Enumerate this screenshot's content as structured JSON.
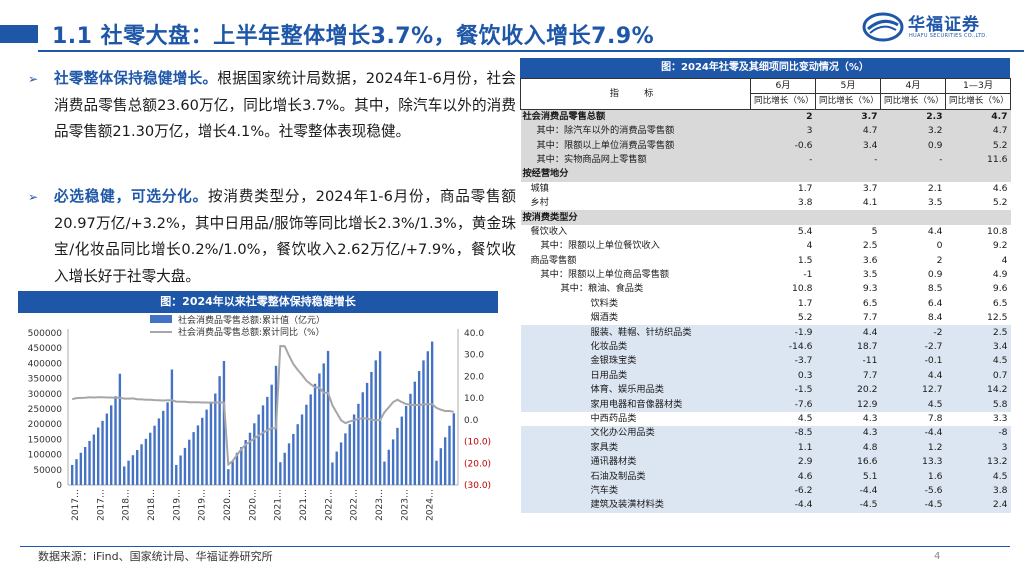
{
  "header": {
    "title": "1.1 社零大盘：上半年整体增长3.7%，餐饮收入增长7.9%",
    "logo_name": "华福证券",
    "logo_sub": "HUAFU SECURITIES CO.,LTD."
  },
  "bullets": [
    {
      "highlight": "社零整体保持稳健增长。",
      "body": "根据国家统计局数据，2024年1-6月份，社会消费品零售总额23.60万亿，同比增长3.7%。其中，除汽车以外的消费品零售额21.30万亿，增长4.1%。社零整体表现稳健。"
    },
    {
      "highlight": "必选稳健，可选分化。",
      "body": "按消费类型分，2024年1-6月份，商品零售额20.97万亿/+3.2%，其中日用品/服饰等同比增长2.3%/1.3%，黄金珠宝/化妆品同比增长0.2%/1.0%，餐饮收入2.62万亿/+7.9%，餐饮收入增长好于社零大盘。"
    }
  ],
  "chart_title": "图：2024年以来社零整体保持稳健增长",
  "chart_data": {
    "type": "bar+line",
    "legend": [
      "社会消费品零售总额:累计值（亿元）",
      "社会消费品零售总额:累计同比（%）"
    ],
    "legend_position": "top-left",
    "left_ticks": [
      "500000",
      "450000",
      "400000",
      "350000",
      "300000",
      "250000",
      "200000",
      "150000",
      "100000",
      "50000",
      "0"
    ],
    "right_ticks": [
      "40.0",
      "30.0",
      "20.0",
      "10.0",
      "0.0",
      "(10.0)",
      "(20.0)",
      "(30.0)"
    ],
    "x_ticks": [
      "2017…",
      "2017…",
      "2018…",
      "2018…",
      "2019…",
      "2019…",
      "2020…",
      "2020…",
      "2021…",
      "2021…",
      "2022…",
      "2022…",
      "2023…",
      "2023…",
      "2024…"
    ],
    "ylim_left": [
      0,
      500000
    ],
    "ylim_right": [
      -30,
      40
    ],
    "series": [
      {
        "name": "社会消费品零售总额:累计值（亿元）",
        "type": "bar",
        "values": [
          66000,
          85000,
          106000,
          125000,
          145000,
          166000,
          189000,
          211000,
          235000,
          262000,
          292000,
          366000,
          61000,
          80000,
          98000,
          115000,
          134000,
          152000,
          172000,
          195000,
          219000,
          244000,
          272000,
          380000,
          66000,
          97000,
          122000,
          149000,
          174000,
          196000,
          221000,
          248000,
          274000,
          301000,
          358000,
          408000,
          52000,
          78000,
          106000,
          125000,
          148000,
          172000,
          203000,
          232000,
          262000,
          290000,
          330000,
          392000,
          75000,
          106000,
          137000,
          168000,
          200000,
          232000,
          264000,
          298000,
          333000,
          367000,
          400000,
          441000,
          74000,
          110000,
          140000,
          170000,
          200000,
          232000,
          267000,
          305000,
          336000,
          372000,
          410000,
          440000,
          77000,
          116000,
          150000,
          188000,
          225000,
          260000,
          300000,
          340000,
          375000,
          410000,
          440000,
          472000,
          80000,
          121000,
          157000,
          195000,
          236000
        ]
      },
      {
        "name": "社会消费品零售总额:累计同比（%）",
        "type": "line",
        "values": [
          9.5,
          10.0,
          10.1,
          10.2,
          10.4,
          10.3,
          10.4,
          10.4,
          10.3,
          10.3,
          10.2,
          10.2,
          9.8,
          9.8,
          9.9,
          9.5,
          9.4,
          9.3,
          9.3,
          9.1,
          9.0,
          8.9,
          9.0,
          9.0,
          8.4,
          8.3,
          8.3,
          8.1,
          8.1,
          8.1,
          8.0,
          8.0,
          7.9,
          8.0,
          8.0,
          8.0,
          -20.5,
          -19.0,
          -16.2,
          -13.5,
          -11.4,
          -10.0,
          -8.6,
          -7.2,
          -5.9,
          -4.8,
          -3.9,
          -3.9,
          34.0,
          33.9,
          29.6,
          25.7,
          23.0,
          20.7,
          18.1,
          16.4,
          15.0,
          14.8,
          12.5,
          12.5,
          6.7,
          3.3,
          -0.2,
          -1.5,
          -0.7,
          -0.2,
          0.5,
          0.7,
          0.6,
          0.1,
          -0.2,
          -0.2,
          3.5,
          5.8,
          8.2,
          9.3,
          8.2,
          7.3,
          7.0,
          6.8,
          6.9,
          7.1,
          7.2,
          7.2,
          5.5,
          4.7,
          4.1,
          4.1,
          3.7
        ]
      }
    ]
  },
  "table": {
    "title": "图：2024年社零及其细项同比变动情况（%）",
    "indicator_label": "指　标",
    "columns": [
      "6月",
      "5月",
      "4月",
      "1—3月"
    ],
    "sub_header": "同比增长（%）",
    "rows": [
      {
        "label": "社会消费品零售总额",
        "style": "bold grp",
        "values": [
          "2",
          "3.7",
          "2.3",
          "4.7"
        ]
      },
      {
        "label": "其中：除汽车以外的消费品零售额",
        "style": "grp",
        "values": [
          "3",
          "4.7",
          "3.2",
          "4.7"
        ]
      },
      {
        "label": "其中：限额以上单位消费品零售额",
        "style": "grp",
        "values": [
          "-0.6",
          "3.4",
          "0.9",
          "5.2"
        ]
      },
      {
        "label": "其中：实物商品网上零售额",
        "style": "grp",
        "values": [
          "-",
          "-",
          "-",
          "11.6"
        ]
      },
      {
        "label": "按经营地分",
        "style": "bold grp",
        "values": [
          "",
          "",
          "",
          ""
        ]
      },
      {
        "label": "城镇",
        "style": "",
        "values": [
          "1.7",
          "3.7",
          "2.1",
          "4.6"
        ]
      },
      {
        "label": "乡村",
        "style": "",
        "values": [
          "3.8",
          "4.1",
          "3.5",
          "5.2"
        ]
      },
      {
        "label": "按消费类型分",
        "style": "bold grp",
        "values": [
          "",
          "",
          "",
          ""
        ]
      },
      {
        "label": "餐饮收入",
        "style": "",
        "values": [
          "5.4",
          "5",
          "4.4",
          "10.8"
        ]
      },
      {
        "label": "其中：限额以上单位餐饮收入",
        "style": "",
        "values": [
          "4",
          "2.5",
          "0",
          "9.2"
        ]
      },
      {
        "label": "商品零售额",
        "style": "",
        "values": [
          "1.5",
          "3.6",
          "2",
          "4"
        ]
      },
      {
        "label": "其中：限额以上单位商品零售额",
        "style": "",
        "values": [
          "-1",
          "3.5",
          "0.9",
          "4.9"
        ]
      },
      {
        "label": "其中：粮油、食品类",
        "style": "",
        "values": [
          "10.8",
          "9.3",
          "8.5",
          "9.6"
        ]
      },
      {
        "label": "饮料类",
        "style": "",
        "values": [
          "1.7",
          "6.5",
          "6.4",
          "6.5"
        ]
      },
      {
        "label": "烟酒类",
        "style": "",
        "values": [
          "5.2",
          "7.7",
          "8.4",
          "12.5"
        ]
      },
      {
        "label": "服装、鞋帽、针纺织品类",
        "style": "blue",
        "values": [
          "-1.9",
          "4.4",
          "-2",
          "2.5"
        ]
      },
      {
        "label": "化妆品类",
        "style": "blue",
        "values": [
          "-14.6",
          "18.7",
          "-2.7",
          "3.4"
        ]
      },
      {
        "label": "金银珠宝类",
        "style": "blue",
        "values": [
          "-3.7",
          "-11",
          "-0.1",
          "4.5"
        ]
      },
      {
        "label": "日用品类",
        "style": "blue",
        "values": [
          "0.3",
          "7.7",
          "4.4",
          "0.7"
        ]
      },
      {
        "label": "体育、娱乐用品类",
        "style": "blue",
        "values": [
          "-1.5",
          "20.2",
          "12.7",
          "14.2"
        ]
      },
      {
        "label": "家用电器和音像器材类",
        "style": "blue",
        "values": [
          "-7.6",
          "12.9",
          "4.5",
          "5.8"
        ]
      },
      {
        "label": "中西药品类",
        "style": "",
        "values": [
          "4.5",
          "4.3",
          "7.8",
          "3.3"
        ]
      },
      {
        "label": "文化办公用品类",
        "style": "blue",
        "values": [
          "-8.5",
          "4.3",
          "-4.4",
          "-8"
        ]
      },
      {
        "label": "家具类",
        "style": "blue",
        "values": [
          "1.1",
          "4.8",
          "1.2",
          "3"
        ]
      },
      {
        "label": "通讯器材类",
        "style": "blue",
        "values": [
          "2.9",
          "16.6",
          "13.3",
          "13.2"
        ]
      },
      {
        "label": "石油及制品类",
        "style": "blue",
        "values": [
          "4.6",
          "5.1",
          "1.6",
          "4.5"
        ]
      },
      {
        "label": "汽车类",
        "style": "blue",
        "values": [
          "-6.2",
          "-4.4",
          "-5.6",
          "3.8"
        ]
      },
      {
        "label": "建筑及装潢材料类",
        "style": "blue",
        "values": [
          "-4.4",
          "-4.5",
          "-4.5",
          "2.4"
        ]
      }
    ]
  },
  "footer": {
    "source": "数据来源：iFind、国家统计局、华福证券研究所",
    "page_number": "4"
  },
  "colors": {
    "brand": "#1f57a8",
    "bar": "#4472c4",
    "line": "#a6a6a6",
    "negative_tick": "#c00000"
  }
}
